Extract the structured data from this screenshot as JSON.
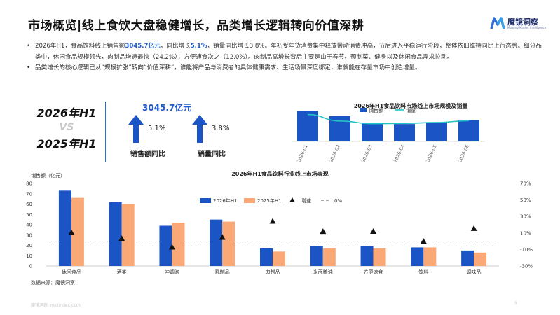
{
  "title": "市场概览|线上食饮大盘稳健增长，品类增长逻辑转向价值深耕",
  "logo": {
    "name": "魔镜洞察",
    "subtitle": "Moojing Market Intelligence",
    "color_primary": "#2f6fd6",
    "color_secondary": "#3aa0e8"
  },
  "bullets": [
    {
      "pre": "2026年H1，食品饮料线上销售额",
      "hl1": "3045.7亿元",
      "mid1": "，同比增长",
      "hl2": "5.1%",
      "post": "，销量同比增长3.8%。年初受年货消费集中释放带动消费冲高，节后进入平稳运行阶段，整体依旧维持同比上行态势。细分品类中，休闲食品规模领先，肉制品增速最快（24.2%），方便速食次之（12.0%）。肉制品高增长背后主要是由于春节、预制菜、健身以及休闲食品需求拉动。"
    },
    {
      "text": "品类增长的核心逻辑已从“规模扩张”转向“价值深耕”，谁能将产品与消费者的具体健康需求、生活场景深度绑定，谁就能在存量市场中创造增量。"
    }
  ],
  "comparison": {
    "current": "2026年H1",
    "vs": "VS",
    "previous": "2025年H1"
  },
  "kpis": {
    "total_sales": "3045.7亿元",
    "sales_growth": "5.1%",
    "sales_growth_label": "销售额同比",
    "volume_growth": "3.8%",
    "volume_growth_label": "销量同比"
  },
  "colors": {
    "blue": "#1b54c4",
    "orange": "#f9a876",
    "teal": "#22c3c3",
    "accent": "#1e58c9"
  },
  "chart_data": [
    {
      "type": "bar",
      "title": "2026年H1食品饮料市场线上市场规模及销量",
      "categories": [
        "2026-01",
        "2026-02",
        "2026-03",
        "2026-04",
        "2026-05",
        "2026-06"
      ],
      "series": [
        {
          "name": "销售额",
          "type": "bar",
          "values": [
            100,
            83,
            60,
            57,
            62,
            70
          ]
        },
        {
          "name": "销量",
          "type": "line",
          "values": [
            88,
            67,
            58,
            59,
            62,
            68
          ]
        }
      ],
      "ylim": [
        0,
        110
      ],
      "grid": false,
      "legend": "top"
    },
    {
      "type": "bar",
      "title": "2026年H1食品饮料行业线上市场表现",
      "ylabel": "销售额（亿元）",
      "categories": [
        "休闲食品",
        "酒类",
        "冲调泡",
        "乳制品",
        "肉制品",
        "米面粮油",
        "方便速食",
        "饮料",
        "调味品"
      ],
      "series": [
        {
          "name": "2026年H1",
          "values": [
            73,
            62,
            39,
            45,
            17,
            19,
            19,
            18,
            15
          ]
        },
        {
          "name": "2025年H1",
          "values": [
            66,
            60,
            42,
            43,
            14,
            17,
            17,
            18,
            13
          ]
        },
        {
          "name": "增速",
          "type": "scatter",
          "axis": "right",
          "values": [
            10.6,
            3.3,
            -7.1,
            4.7,
            24.2,
            11.8,
            12.0,
            0.0,
            15.4
          ]
        },
        {
          "name": "0%",
          "type": "line",
          "axis": "right",
          "values": [
            0,
            0,
            0,
            0,
            0,
            0,
            0,
            0,
            0
          ]
        }
      ],
      "ylim": [
        0,
        80
      ],
      "yticks": [
        "0",
        "10",
        "20",
        "30",
        "40",
        "50",
        "60",
        "70",
        "80"
      ],
      "y2lim": [
        -30,
        70
      ],
      "y2ticks": [
        "-30%",
        "-10%",
        "10%",
        "30%",
        "50%",
        "70%"
      ],
      "legend": "top"
    }
  ],
  "source": "数据来源：魔镜洞察",
  "footer": "魔镜洞察: mktindex.com",
  "page_number": "5"
}
